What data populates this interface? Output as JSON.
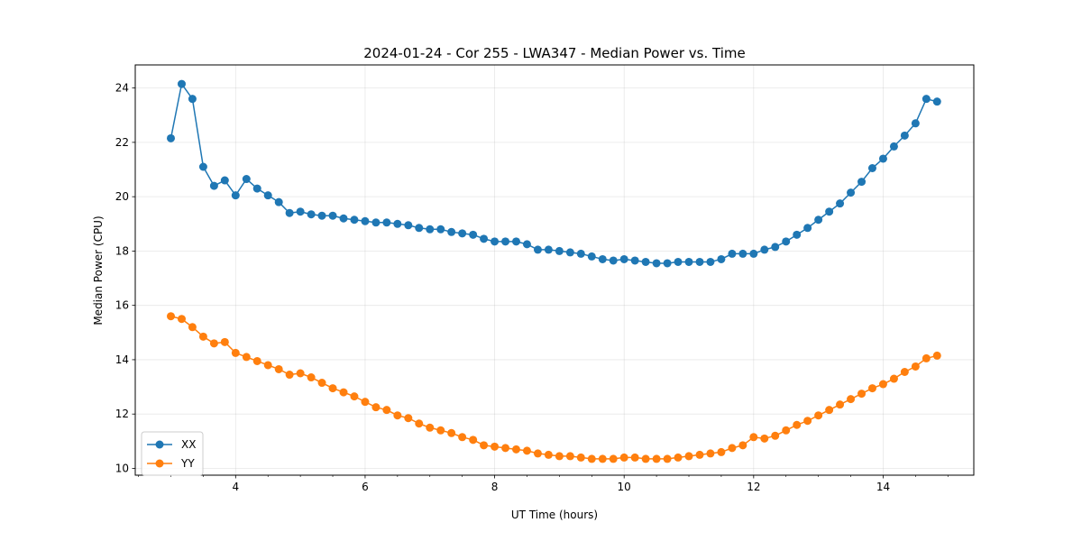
{
  "chart_data": {
    "type": "line",
    "title": "2024-01-24 - Cor 255 - LWA347 - Median Power vs. Time",
    "xlabel": "UT Time (hours)",
    "ylabel": "Median Power (CPU)",
    "xlim": [
      2.45,
      15.4
    ],
    "ylim": [
      9.75,
      24.85
    ],
    "xticks": [
      4,
      6,
      8,
      10,
      12,
      14
    ],
    "yticks": [
      10,
      12,
      14,
      16,
      18,
      20,
      22,
      24
    ],
    "grid": true,
    "legend_location": "lower-left",
    "x": [
      3.0,
      3.167,
      3.333,
      3.5,
      3.667,
      3.833,
      4.0,
      4.167,
      4.333,
      4.5,
      4.667,
      4.833,
      5.0,
      5.167,
      5.333,
      5.5,
      5.667,
      5.833,
      6.0,
      6.167,
      6.333,
      6.5,
      6.667,
      6.833,
      7.0,
      7.167,
      7.333,
      7.5,
      7.667,
      7.833,
      8.0,
      8.167,
      8.333,
      8.5,
      8.667,
      8.833,
      9.0,
      9.167,
      9.333,
      9.5,
      9.667,
      9.833,
      10.0,
      10.167,
      10.333,
      10.5,
      10.667,
      10.833,
      11.0,
      11.167,
      11.333,
      11.5,
      11.667,
      11.833,
      12.0,
      12.167,
      12.333,
      12.5,
      12.667,
      12.833,
      13.0,
      13.167,
      13.333,
      13.5,
      13.667,
      13.833,
      14.0,
      14.167,
      14.333,
      14.5,
      14.667,
      14.833
    ],
    "series": [
      {
        "name": "XX",
        "color": "#1f77b4",
        "values": [
          22.15,
          24.15,
          23.6,
          21.1,
          20.4,
          20.6,
          20.05,
          20.65,
          20.3,
          20.05,
          19.8,
          19.4,
          19.45,
          19.35,
          19.3,
          19.3,
          19.2,
          19.15,
          19.1,
          19.05,
          19.05,
          19.0,
          18.95,
          18.85,
          18.8,
          18.8,
          18.7,
          18.65,
          18.6,
          18.45,
          18.35,
          18.35,
          18.35,
          18.25,
          18.05,
          18.05,
          18.0,
          17.95,
          17.9,
          17.8,
          17.7,
          17.65,
          17.7,
          17.65,
          17.6,
          17.55,
          17.55,
          17.6,
          17.6,
          17.6,
          17.6,
          17.7,
          17.9,
          17.9,
          17.9,
          18.05,
          18.15,
          18.35,
          18.6,
          18.85,
          19.15,
          19.45,
          19.75,
          20.15,
          20.55,
          21.05,
          21.4,
          21.85,
          22.25,
          22.7,
          23.6,
          23.5
        ]
      },
      {
        "name": "YY",
        "color": "#ff7f0e",
        "values": [
          15.6,
          15.5,
          15.2,
          14.85,
          14.6,
          14.65,
          14.25,
          14.1,
          13.95,
          13.8,
          13.65,
          13.45,
          13.5,
          13.35,
          13.15,
          12.95,
          12.8,
          12.65,
          12.45,
          12.25,
          12.15,
          11.95,
          11.85,
          11.65,
          11.5,
          11.4,
          11.3,
          11.15,
          11.05,
          10.85,
          10.8,
          10.75,
          10.7,
          10.65,
          10.55,
          10.5,
          10.45,
          10.45,
          10.4,
          10.35,
          10.35,
          10.35,
          10.4,
          10.4,
          10.35,
          10.35,
          10.35,
          10.4,
          10.45,
          10.5,
          10.55,
          10.6,
          10.75,
          10.85,
          11.15,
          11.1,
          11.2,
          11.4,
          11.6,
          11.75,
          11.95,
          12.15,
          12.35,
          12.55,
          12.75,
          12.95,
          13.1,
          13.3,
          13.55,
          13.75,
          14.05,
          14.15
        ]
      }
    ]
  }
}
